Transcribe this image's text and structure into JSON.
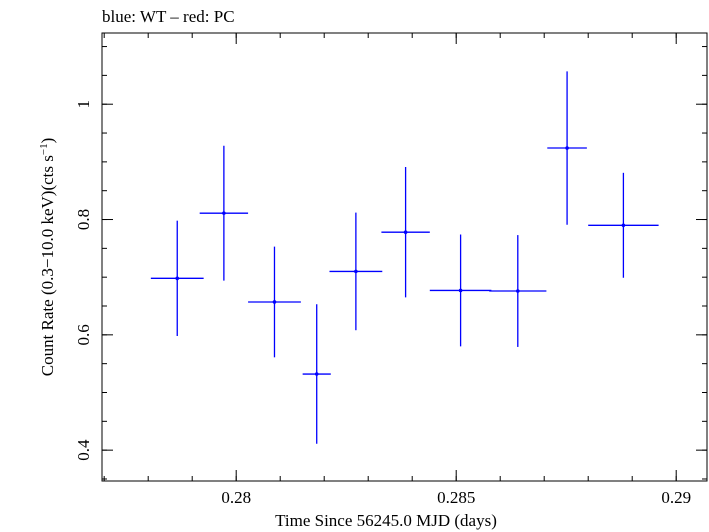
{
  "chart_data": {
    "type": "scatter",
    "title": "blue: WT – red: PC",
    "xlabel": "Time Since 56245.0 MJD (days)",
    "ylabel": "Count Rate (0.3−10.0 keV)(cts s",
    "ylabel_sup": "−1",
    "ylabel_end": ")",
    "xlim": [
      0.27695,
      0.2907
    ],
    "ylim": [
      0.3465,
      1.1235
    ],
    "x_ticks": [
      {
        "value": 0.28,
        "label": "0.28"
      },
      {
        "value": 0.285,
        "label": "0.285"
      },
      {
        "value": 0.29,
        "label": "0.29"
      }
    ],
    "y_ticks": [
      {
        "value": 0.4,
        "label": "0.4"
      },
      {
        "value": 0.6,
        "label": "0.6"
      },
      {
        "value": 0.8,
        "label": "0.8"
      },
      {
        "value": 1.0,
        "label": "1"
      }
    ],
    "x_minor_step": 0.001,
    "y_minor_step": 0.05,
    "grid": false,
    "series": [
      {
        "color": "#0000ff",
        "points": [
          {
            "x": 0.27866,
            "xerr": 0.0006,
            "y": 0.698,
            "yerr": 0.1
          },
          {
            "x": 0.27972,
            "xerr": 0.00055,
            "y": 0.811,
            "yerr": 0.117
          },
          {
            "x": 0.28087,
            "xerr": 0.0006,
            "y": 0.657,
            "yerr": 0.096
          },
          {
            "x": 0.28183,
            "xerr": 0.00032,
            "y": 0.532,
            "yerr": 0.121
          },
          {
            "x": 0.28272,
            "xerr": 0.0006,
            "y": 0.71,
            "yerr": 0.102
          },
          {
            "x": 0.28385,
            "xerr": 0.00055,
            "y": 0.778,
            "yerr": 0.113
          },
          {
            "x": 0.2851,
            "xerr": 0.0007,
            "y": 0.677,
            "yerr": 0.097
          },
          {
            "x": 0.2864,
            "xerr": 0.00065,
            "y": 0.676,
            "yerr": 0.097
          },
          {
            "x": 0.28752,
            "xerr": 0.00045,
            "y": 0.924,
            "yerr": 0.133
          },
          {
            "x": 0.2888,
            "xerr": 0.0008,
            "y": 0.79,
            "yerr": 0.091
          }
        ]
      }
    ]
  }
}
